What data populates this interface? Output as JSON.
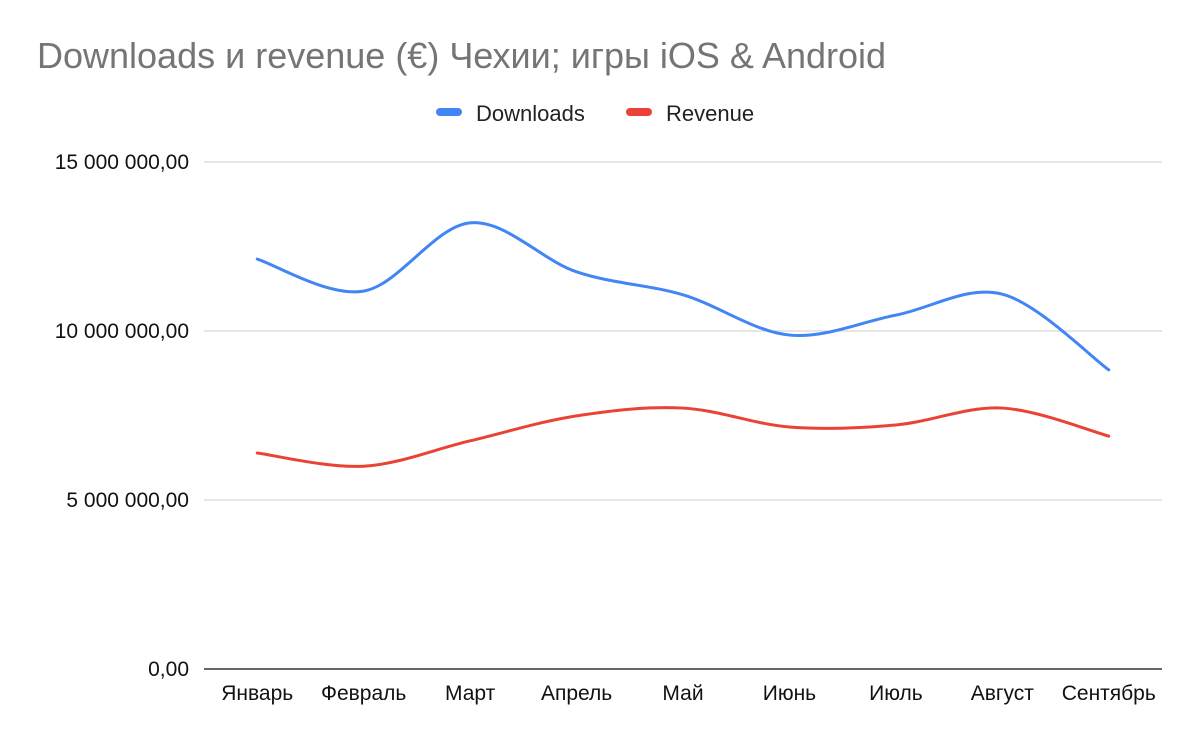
{
  "chart_data": {
    "type": "line",
    "title": "Downloads и revenue (€) Чехии; игры iOS & Android",
    "xlabel": "",
    "ylabel": "",
    "categories": [
      "Январь",
      "Февраль",
      "Март",
      "Апрель",
      "Май",
      "Июнь",
      "Июль",
      "Август",
      "Сентябрь"
    ],
    "series": [
      {
        "name": "Downloads",
        "color": "#4285f4",
        "values": [
          12130000,
          11180000,
          13200000,
          11750000,
          11070000,
          9880000,
          10470000,
          11090000,
          8850000
        ]
      },
      {
        "name": "Revenue",
        "color": "#ea4335",
        "values": [
          6390000,
          6000000,
          6750000,
          7490000,
          7720000,
          7160000,
          7220000,
          7720000,
          6890000
        ]
      }
    ],
    "ylim": [
      0,
      15000000
    ],
    "yticks": [
      0,
      5000000,
      10000000,
      15000000
    ],
    "ytick_labels": [
      "0,00",
      "5 000 000,00",
      "10 000 000,00",
      "15 000 000,00"
    ],
    "grid": true,
    "smooth": true,
    "legend_position": "top"
  }
}
